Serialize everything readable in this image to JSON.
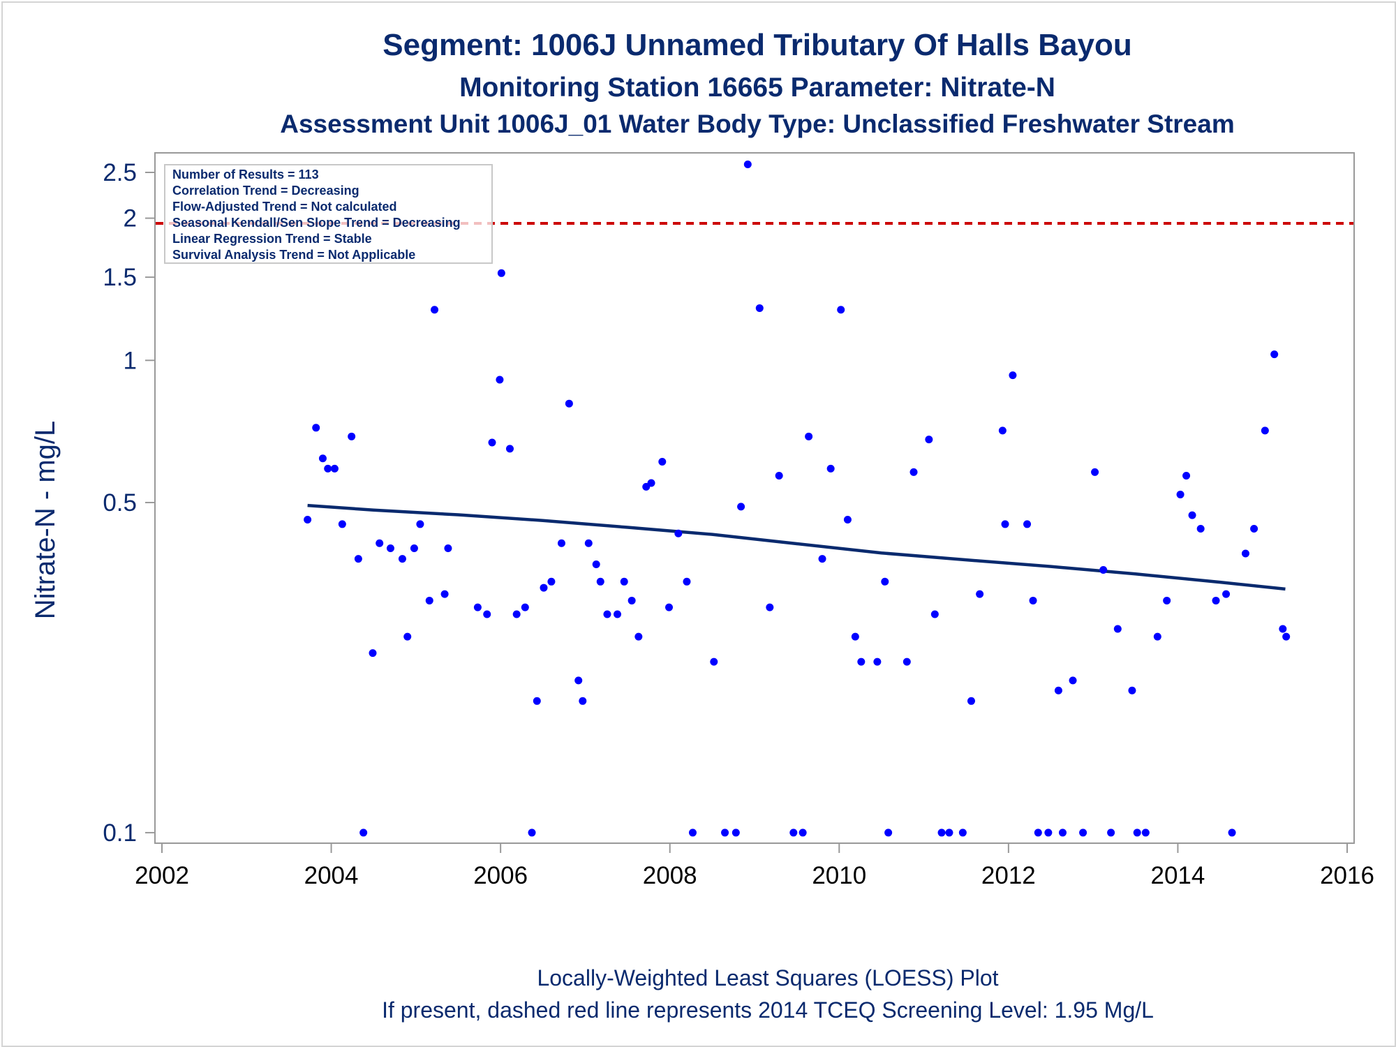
{
  "colors": {
    "text": "#0a2a6e",
    "points": "#0000ff",
    "loess": "#0a2a6e",
    "screening_line": "#cc0000",
    "frame": "#999999"
  },
  "chart_data": {
    "type": "scatter",
    "title": "Segment: 1006J  Unnamed Tributary Of Halls Bayou",
    "subtitle": "Monitoring Station 16665 Parameter: Nitrate-N",
    "subtitle2": "Assessment Unit 1006J_01   Water Body Type: Unclassified Freshwater Stream",
    "xlabel": "",
    "ylabel": "Nitrate-N - mg/L",
    "x_scale": "time (years)",
    "y_scale": "log",
    "xlim": [
      2002,
      2016
    ],
    "ylim": [
      0.095,
      2.75
    ],
    "x_ticks": [
      "2002",
      "2004",
      "2006",
      "2008",
      "2010",
      "2012",
      "2014",
      "2016"
    ],
    "x_tick_values": [
      2002,
      2004,
      2006,
      2008,
      2010,
      2012,
      2014,
      2016
    ],
    "y_ticks": [
      "0.1",
      "0.5",
      "1",
      "1.5",
      "2",
      "2.5"
    ],
    "y_tick_values": [
      0.1,
      0.5,
      1,
      1.5,
      2,
      2.5
    ],
    "grid": false,
    "legend_placement": "top-left",
    "legend_lines": [
      "Number of Results = 113",
      "Correlation Trend = Decreasing",
      "Flow-Adjusted Trend = Not calculated",
      "Seasonal Kendall/Sen Slope Trend = Decreasing",
      "Linear Regression Trend = Stable",
      "Survival Analysis Trend = Not Applicable"
    ],
    "screening_level": 1.95,
    "footnote1": "Locally-Weighted Least Squares (LOESS) Plot",
    "footnote2": "If present, dashed red line represents 2014 TCEQ Screening Level: 1.95 Mg/L",
    "series": [
      {
        "type": "scatter",
        "points": [
          [
            2003.72,
            0.46
          ],
          [
            2003.82,
            0.72
          ],
          [
            2003.9,
            0.62
          ],
          [
            2003.96,
            0.59
          ],
          [
            2004.04,
            0.59
          ],
          [
            2004.13,
            0.45
          ],
          [
            2004.24,
            0.69
          ],
          [
            2004.32,
            0.38
          ],
          [
            2004.38,
            0.1
          ],
          [
            2004.49,
            0.24
          ],
          [
            2004.57,
            0.41
          ],
          [
            2004.7,
            0.4
          ],
          [
            2004.84,
            0.38
          ],
          [
            2004.9,
            0.26
          ],
          [
            2004.98,
            0.4
          ],
          [
            2005.05,
            0.45
          ],
          [
            2005.16,
            0.31
          ],
          [
            2005.22,
            1.28
          ],
          [
            2005.34,
            0.32
          ],
          [
            2005.38,
            0.4
          ],
          [
            2005.73,
            0.3
          ],
          [
            2005.84,
            0.29
          ],
          [
            2005.9,
            0.67
          ],
          [
            2005.99,
            0.91
          ],
          [
            2006.01,
            1.53
          ],
          [
            2006.11,
            0.65
          ],
          [
            2006.19,
            0.29
          ],
          [
            2006.29,
            0.3
          ],
          [
            2006.37,
            0.1
          ],
          [
            2006.43,
            0.19
          ],
          [
            2006.51,
            0.33
          ],
          [
            2006.6,
            0.34
          ],
          [
            2006.72,
            0.41
          ],
          [
            2006.81,
            0.81
          ],
          [
            2006.92,
            0.21
          ],
          [
            2006.97,
            0.19
          ],
          [
            2007.04,
            0.41
          ],
          [
            2007.13,
            0.37
          ],
          [
            2007.18,
            0.34
          ],
          [
            2007.26,
            0.29
          ],
          [
            2007.38,
            0.29
          ],
          [
            2007.46,
            0.34
          ],
          [
            2007.55,
            0.31
          ],
          [
            2007.63,
            0.26
          ],
          [
            2007.72,
            0.54
          ],
          [
            2007.78,
            0.55
          ],
          [
            2007.91,
            0.61
          ],
          [
            2007.99,
            0.3
          ],
          [
            2008.1,
            0.43
          ],
          [
            2008.2,
            0.34
          ],
          [
            2008.27,
            0.1
          ],
          [
            2008.52,
            0.23
          ],
          [
            2008.65,
            0.1
          ],
          [
            2008.78,
            0.1
          ],
          [
            2008.84,
            0.49
          ],
          [
            2008.92,
            2.6
          ],
          [
            2009.06,
            1.29
          ],
          [
            2009.18,
            0.3
          ],
          [
            2009.29,
            0.57
          ],
          [
            2009.46,
            0.1
          ],
          [
            2009.57,
            0.1
          ],
          [
            2009.64,
            0.69
          ],
          [
            2009.8,
            0.38
          ],
          [
            2009.9,
            0.59
          ],
          [
            2010.02,
            1.28
          ],
          [
            2010.1,
            0.46
          ],
          [
            2010.19,
            0.26
          ],
          [
            2010.26,
            0.23
          ],
          [
            2010.45,
            0.23
          ],
          [
            2010.54,
            0.34
          ],
          [
            2010.58,
            0.1
          ],
          [
            2010.8,
            0.23
          ],
          [
            2010.88,
            0.58
          ],
          [
            2011.06,
            0.68
          ],
          [
            2011.13,
            0.29
          ],
          [
            2011.21,
            0.1
          ],
          [
            2011.3,
            0.1
          ],
          [
            2011.46,
            0.1
          ],
          [
            2011.56,
            0.19
          ],
          [
            2011.66,
            0.32
          ],
          [
            2011.93,
            0.71
          ],
          [
            2011.96,
            0.45
          ],
          [
            2012.05,
            0.93
          ],
          [
            2012.22,
            0.45
          ],
          [
            2012.29,
            0.31
          ],
          [
            2012.35,
            0.1
          ],
          [
            2012.47,
            0.1
          ],
          [
            2012.59,
            0.2
          ],
          [
            2012.64,
            0.1
          ],
          [
            2012.76,
            0.21
          ],
          [
            2012.88,
            0.1
          ],
          [
            2013.02,
            0.58
          ],
          [
            2013.12,
            0.36
          ],
          [
            2013.21,
            0.1
          ],
          [
            2013.29,
            0.27
          ],
          [
            2013.46,
            0.2
          ],
          [
            2013.52,
            0.1
          ],
          [
            2013.62,
            0.1
          ],
          [
            2013.76,
            0.26
          ],
          [
            2013.87,
            0.31
          ],
          [
            2014.03,
            0.52
          ],
          [
            2014.1,
            0.57
          ],
          [
            2014.17,
            0.47
          ],
          [
            2014.27,
            0.44
          ],
          [
            2014.45,
            0.31
          ],
          [
            2014.57,
            0.32
          ],
          [
            2014.64,
            0.1
          ],
          [
            2014.8,
            0.39
          ],
          [
            2014.9,
            0.44
          ],
          [
            2015.03,
            0.71
          ],
          [
            2015.14,
            1.03
          ],
          [
            2015.24,
            0.27
          ],
          [
            2015.28,
            0.26
          ]
        ]
      },
      {
        "type": "line",
        "points": [
          [
            2003.72,
            0.493
          ],
          [
            2004.5,
            0.482
          ],
          [
            2005.5,
            0.471
          ],
          [
            2006.5,
            0.458
          ],
          [
            2007.5,
            0.443
          ],
          [
            2008.5,
            0.428
          ],
          [
            2009.5,
            0.409
          ],
          [
            2010.5,
            0.391
          ],
          [
            2011.5,
            0.378
          ],
          [
            2012.5,
            0.366
          ],
          [
            2013.5,
            0.353
          ],
          [
            2014.5,
            0.339
          ],
          [
            2015.27,
            0.328
          ]
        ]
      }
    ]
  }
}
